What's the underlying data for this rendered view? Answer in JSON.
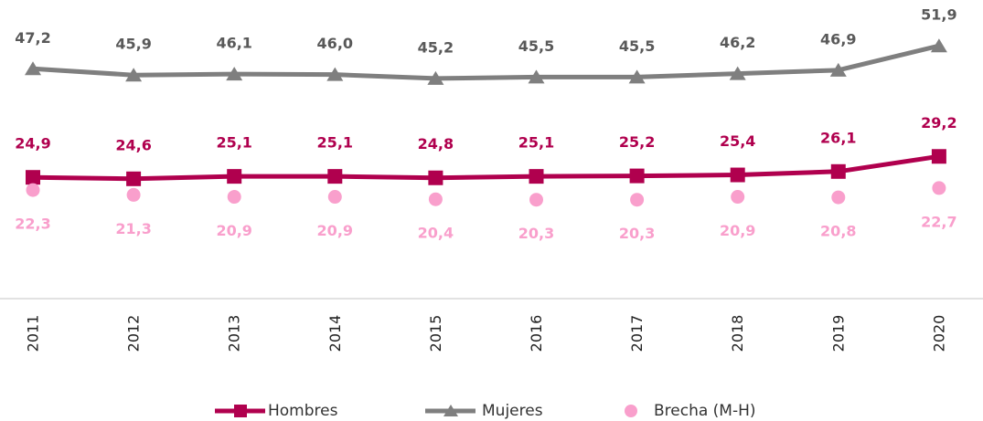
{
  "chart_data": {
    "type": "line",
    "categories": [
      "2011",
      "2012",
      "2013",
      "2014",
      "2015",
      "2016",
      "2017",
      "2018",
      "2019",
      "2020"
    ],
    "ylim": [
      0,
      60
    ],
    "series": [
      {
        "name": "Hombres",
        "color": "#b0004e",
        "marker": "square",
        "line": true,
        "values": [
          24.9,
          24.6,
          25.1,
          25.1,
          24.8,
          25.1,
          25.2,
          25.4,
          26.1,
          29.2
        ],
        "value_labels": [
          "24,9",
          "24,6",
          "25,1",
          "25,1",
          "24,8",
          "25,1",
          "25,2",
          "25,4",
          "26,1",
          "29,2"
        ]
      },
      {
        "name": "Mujeres",
        "color": "#7f7f7f",
        "marker": "triangle",
        "line": true,
        "values": [
          47.2,
          45.9,
          46.1,
          46.0,
          45.2,
          45.5,
          45.5,
          46.2,
          46.9,
          51.9
        ],
        "value_labels": [
          "47,2",
          "45,9",
          "46,1",
          "46,0",
          "45,2",
          "45,5",
          "45,5",
          "46,2",
          "46,9",
          "51,9"
        ]
      },
      {
        "name": "Brecha (M-H)",
        "color": "#f99fcc",
        "marker": "circle",
        "line": false,
        "values": [
          22.3,
          21.3,
          20.9,
          20.9,
          20.4,
          20.3,
          20.3,
          20.9,
          20.8,
          22.7
        ],
        "value_labels": [
          "22,3",
          "21,3",
          "20,9",
          "20,9",
          "20,4",
          "20,3",
          "20,3",
          "20,9",
          "20,8",
          "22,7"
        ]
      }
    ]
  }
}
